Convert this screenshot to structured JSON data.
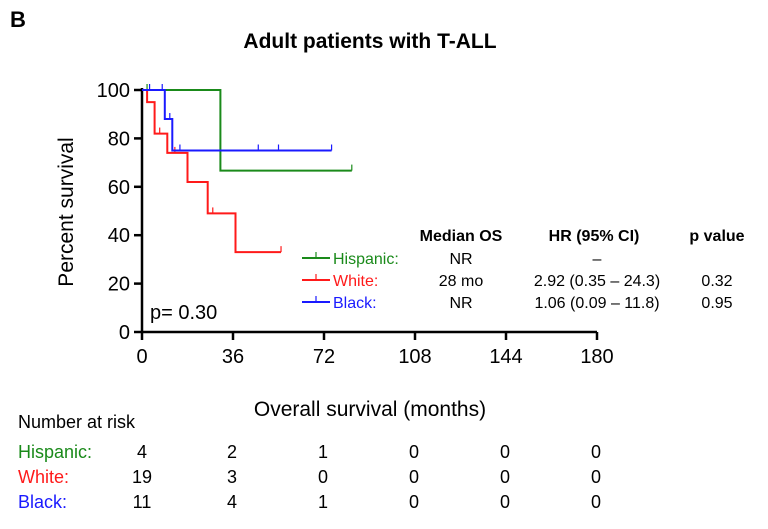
{
  "panel_label": "B",
  "chart_data": {
    "type": "line",
    "title": "Adult patients with T-ALL",
    "xlabel": "Overall survival (months)",
    "ylabel": "Percent survival",
    "xlim": [
      0,
      180
    ],
    "ylim": [
      0,
      100
    ],
    "xticks": [
      0,
      36,
      72,
      108,
      144,
      180
    ],
    "yticks": [
      0,
      20,
      40,
      60,
      80,
      100
    ],
    "grid": false,
    "annotation": "p= 0.30",
    "series": [
      {
        "name": "Hispanic",
        "color": "#1a8a1a",
        "steps": [
          [
            0,
            100
          ],
          [
            31,
            100
          ],
          [
            31,
            66.7
          ],
          [
            83,
            66.7
          ]
        ],
        "censor": [
          [
            2,
            100
          ],
          [
            83,
            66.7
          ]
        ]
      },
      {
        "name": "White",
        "color": "#ff1a1a",
        "steps": [
          [
            0,
            100
          ],
          [
            2,
            100
          ],
          [
            2,
            95
          ],
          [
            5,
            95
          ],
          [
            5,
            82
          ],
          [
            10,
            82
          ],
          [
            10,
            74
          ],
          [
            18,
            74
          ],
          [
            18,
            62
          ],
          [
            26,
            62
          ],
          [
            26,
            49
          ],
          [
            37,
            49
          ],
          [
            37,
            33
          ],
          [
            55,
            33
          ]
        ],
        "censor": [
          [
            7,
            82
          ],
          [
            13,
            74
          ],
          [
            28,
            49
          ],
          [
            55,
            33
          ]
        ]
      },
      {
        "name": "Black",
        "color": "#1a1aff",
        "steps": [
          [
            0,
            100
          ],
          [
            9,
            100
          ],
          [
            9,
            88
          ],
          [
            12,
            88
          ],
          [
            12,
            75
          ],
          [
            75,
            75
          ]
        ],
        "censor": [
          [
            3,
            100
          ],
          [
            8,
            100
          ],
          [
            11,
            88
          ],
          [
            15,
            75
          ],
          [
            46,
            75
          ],
          [
            54,
            75
          ],
          [
            75,
            75
          ]
        ]
      }
    ],
    "legend_table": {
      "headers": [
        "Median OS",
        "HR (95% CI)",
        "p value"
      ],
      "rows": [
        {
          "label": "Hispanic:",
          "median": "NR",
          "hr": "–",
          "p": ""
        },
        {
          "label": "White:",
          "median": "28 mo",
          "hr": "2.92 (0.35 – 24.3)",
          "p": "0.32"
        },
        {
          "label": "Black:",
          "median": "NR",
          "hr": "1.06 (0.09 – 11.8)",
          "p": "0.95"
        }
      ]
    },
    "risk_table": {
      "title": "Number at risk",
      "rows": [
        {
          "label": "Hispanic:",
          "color": "#1a8a1a",
          "values": [
            "4",
            "2",
            "1",
            "0",
            "0",
            "0"
          ]
        },
        {
          "label": "White:",
          "color": "#ff1a1a",
          "values": [
            "19",
            "3",
            "0",
            "0",
            "0",
            "0"
          ]
        },
        {
          "label": "Black:",
          "color": "#1a1aff",
          "values": [
            "11",
            "4",
            "1",
            "0",
            "0",
            "0"
          ]
        }
      ]
    }
  }
}
